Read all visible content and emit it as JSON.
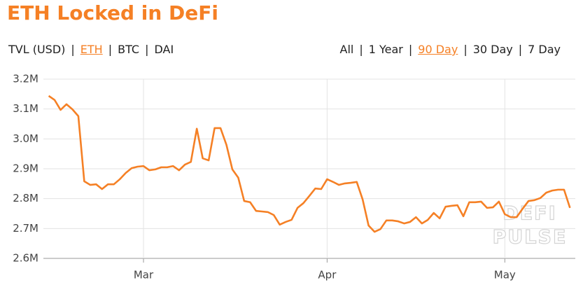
{
  "chart_data": {
    "type": "line",
    "title": "ETH Locked in DeFi",
    "unit_tabs": [
      "TVL (USD)",
      "ETH",
      "BTC",
      "DAI"
    ],
    "active_unit_tab": 1,
    "range_tabs": [
      "All",
      "1 Year",
      "90 Day",
      "30 Day",
      "7 Day"
    ],
    "active_range_tab": 2,
    "watermark": [
      "DEFI",
      "PULSE"
    ],
    "x": [
      -16,
      -15,
      -14,
      -13,
      -12,
      -11,
      -10,
      -9,
      -8,
      -7,
      -6,
      -5,
      -4,
      -3,
      -2,
      -1,
      0,
      1,
      2,
      3,
      4,
      5,
      6,
      7,
      8,
      9,
      10,
      11,
      12,
      13,
      14,
      15,
      16,
      17,
      18,
      19,
      20,
      21,
      22,
      23,
      24,
      25,
      26,
      27,
      28,
      29,
      30,
      31,
      32,
      33,
      34,
      35,
      36,
      37,
      38,
      39,
      40,
      41,
      42,
      43,
      44,
      45,
      46,
      47,
      48,
      49,
      50,
      51,
      52,
      53,
      54,
      55,
      56,
      57,
      58,
      59,
      60,
      61,
      62,
      63,
      64,
      65,
      66,
      67,
      68,
      69,
      70,
      71,
      72
    ],
    "series": [
      {
        "name": "ETH",
        "color": "#f58025",
        "values": [
          3144000,
          3130000,
          3097000,
          3116000,
          3099000,
          3076000,
          2858000,
          2846000,
          2848000,
          2832000,
          2848000,
          2848000,
          2865000,
          2886000,
          2902000,
          2907000,
          2909000,
          2895000,
          2898000,
          2905000,
          2905000,
          2909000,
          2895000,
          2914000,
          2923000,
          3034000,
          2935000,
          2928000,
          3036000,
          3036000,
          2980000,
          2898000,
          2870000,
          2792000,
          2788000,
          2759000,
          2757000,
          2755000,
          2745000,
          2713000,
          2722000,
          2729000,
          2769000,
          2785000,
          2809000,
          2834000,
          2832000,
          2865000,
          2856000,
          2846000,
          2851000,
          2853000,
          2856000,
          2797000,
          2710000,
          2689000,
          2698000,
          2727000,
          2727000,
          2724000,
          2717000,
          2722000,
          2738000,
          2717000,
          2729000,
          2752000,
          2734000,
          2773000,
          2776000,
          2778000,
          2741000,
          2788000,
          2788000,
          2790000,
          2769000,
          2771000,
          2790000,
          2748000,
          2738000,
          2738000,
          2766000,
          2792000,
          2795000,
          2802000,
          2820000,
          2827000,
          2830000,
          2830000,
          2769000
        ]
      }
    ],
    "xlim": [
      -16.9,
      72.9
    ],
    "xticks": [
      {
        "value": 0,
        "label": "Mar"
      },
      {
        "value": 31,
        "label": "Apr"
      },
      {
        "value": 61,
        "label": "May"
      }
    ],
    "ylim": [
      2600000,
      3200000
    ],
    "yticks": [
      {
        "value": 2600000,
        "label": "2.6M"
      },
      {
        "value": 2700000,
        "label": "2.7M"
      },
      {
        "value": 2800000,
        "label": "2.8M"
      },
      {
        "value": 2900000,
        "label": "2.9M"
      },
      {
        "value": 3000000,
        "label": "3.0M"
      },
      {
        "value": 3100000,
        "label": "3.1M"
      },
      {
        "value": 3200000,
        "label": "3.2M"
      }
    ],
    "grid": true
  }
}
